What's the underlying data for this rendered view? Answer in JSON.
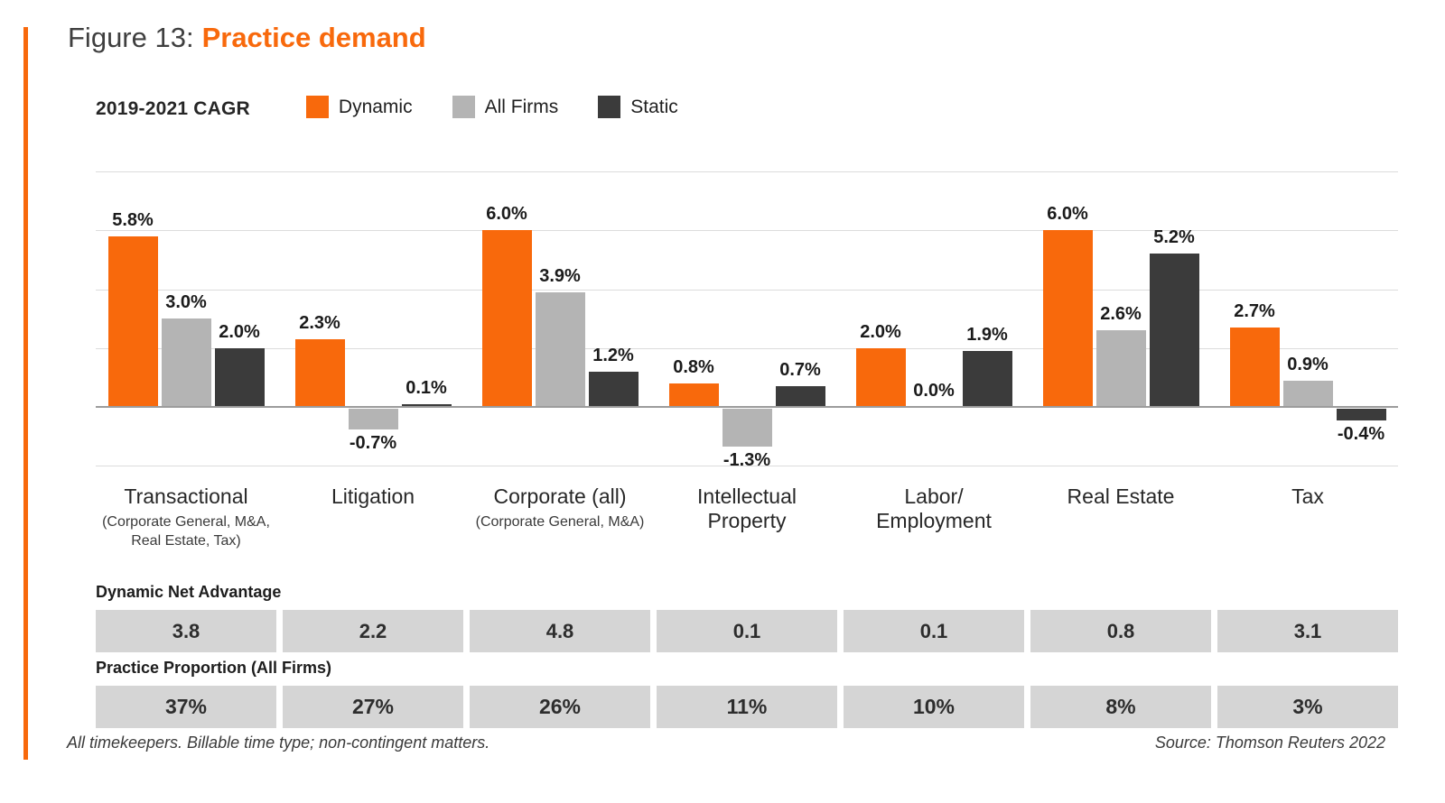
{
  "title": {
    "prefix": "Figure 13:",
    "highlight": "Practice demand"
  },
  "colors": {
    "accent": "#F8690C",
    "dynamic": "#F8690C",
    "all_firms": "#B4B4B4",
    "static": "#3B3B3B",
    "table_box": "#D5D5D5",
    "gridline": "#DCDCDC",
    "zero_line": "#9C9C9C"
  },
  "legend": {
    "title": "2019-2021 CAGR",
    "items": [
      {
        "label": "Dynamic",
        "color": "#F8690C"
      },
      {
        "label": "All Firms",
        "color": "#B4B4B4"
      },
      {
        "label": "Static",
        "color": "#3B3B3B"
      }
    ]
  },
  "chart_data": {
    "type": "bar",
    "title": "2019-2021 CAGR",
    "unit": "%",
    "ylim": [
      -2,
      8
    ],
    "gridline_values": [
      8,
      6,
      4,
      2,
      0,
      -2
    ],
    "grid": true,
    "legend_position": "top",
    "categories": [
      "Transactional",
      "Litigation",
      "Corporate (all)",
      "Intellectual Property",
      "Labor/Employment",
      "Real Estate",
      "Tax"
    ],
    "category_display_lines": [
      [
        "Transactional"
      ],
      [
        "Litigation"
      ],
      [
        "Corporate (all)"
      ],
      [
        "Intellectual",
        "Property"
      ],
      [
        "Labor/",
        "Employment"
      ],
      [
        "Real Estate"
      ],
      [
        "Tax"
      ]
    ],
    "category_sublabel_lines": [
      [
        "(Corporate General, M&A,",
        "Real Estate, Tax)"
      ],
      [],
      [
        "(Corporate General, M&A)"
      ],
      [],
      [],
      [],
      []
    ],
    "series": [
      {
        "name": "Dynamic",
        "color": "#F8690C",
        "values": [
          5.8,
          2.3,
          6.0,
          0.8,
          2.0,
          6.0,
          2.7
        ],
        "labels": [
          "5.8%",
          "2.3%",
          "6.0%",
          "0.8%",
          "2.0%",
          "6.0%",
          "2.7%"
        ]
      },
      {
        "name": "All Firms",
        "color": "#B4B4B4",
        "values": [
          3.0,
          -0.7,
          3.9,
          -1.3,
          0.0,
          2.6,
          0.9
        ],
        "labels": [
          "3.0%",
          "-0.7%",
          "3.9%",
          "-1.3%",
          "0.0%",
          "2.6%",
          "0.9%"
        ]
      },
      {
        "name": "Static",
        "color": "#3B3B3B",
        "values": [
          2.0,
          0.1,
          1.2,
          0.7,
          1.9,
          5.2,
          -0.4
        ],
        "labels": [
          "2.0%",
          "0.1%",
          "1.2%",
          "0.7%",
          "1.9%",
          "5.2%",
          "-0.4%"
        ]
      }
    ]
  },
  "tables": [
    {
      "label": "Dynamic Net Advantage",
      "values": [
        "3.8",
        "2.2",
        "4.8",
        "0.1",
        "0.1",
        "0.8",
        "3.1"
      ]
    },
    {
      "label": "Practice Proportion (All Firms)",
      "values": [
        "37%",
        "27%",
        "26%",
        "11%",
        "10%",
        "8%",
        "3%"
      ]
    }
  ],
  "footer": {
    "note": "All timekeepers. Billable time type; non-contingent matters.",
    "source": "Source: Thomson Reuters 2022"
  }
}
